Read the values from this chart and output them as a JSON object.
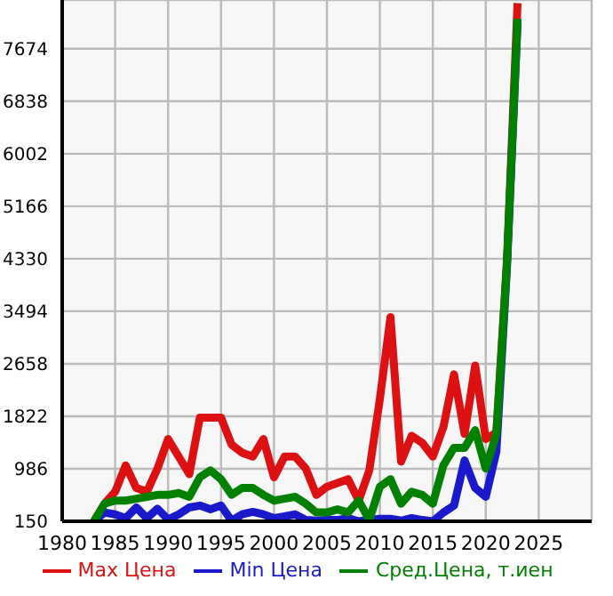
{
  "chart_data": {
    "type": "line",
    "x": [
      1983,
      1984,
      1985,
      1986,
      1987,
      1988,
      1989,
      1990,
      1991,
      1992,
      1993,
      1994,
      1995,
      1996,
      1997,
      1998,
      1999,
      2000,
      2001,
      2002,
      2003,
      2004,
      2005,
      2006,
      2007,
      2008,
      2009,
      2010,
      2011,
      2012,
      2013,
      2014,
      2015,
      2016,
      2017,
      2018,
      2019,
      2020,
      2021,
      2022,
      2023
    ],
    "series": [
      {
        "name": "Max Цена",
        "color": "#dd1111",
        "values": [
          150,
          430,
          620,
          1040,
          680,
          620,
          990,
          1460,
          1180,
          900,
          1800,
          1800,
          1800,
          1370,
          1240,
          1180,
          1460,
          850,
          1180,
          1180,
          990,
          570,
          700,
          760,
          820,
          480,
          960,
          2100,
          3400,
          1100,
          1510,
          1400,
          1180,
          1650,
          2490,
          1540,
          2630,
          1460,
          1560,
          4300,
          8400
        ]
      },
      {
        "name": "Min Цена",
        "color": "#1a1acc",
        "values": [
          150,
          290,
          260,
          200,
          370,
          200,
          350,
          180,
          260,
          370,
          400,
          340,
          400,
          160,
          260,
          300,
          260,
          200,
          230,
          260,
          170,
          160,
          170,
          170,
          200,
          150,
          170,
          190,
          190,
          160,
          200,
          170,
          150,
          290,
          400,
          1120,
          680,
          540,
          1260,
          4200,
          8100
        ]
      },
      {
        "name": "Сред.Цена, т.иен",
        "color": "#008000",
        "values": [
          150,
          430,
          480,
          480,
          510,
          540,
          570,
          570,
          600,
          540,
          850,
          960,
          820,
          570,
          680,
          680,
          570,
          480,
          510,
          540,
          430,
          290,
          290,
          340,
          290,
          480,
          170,
          700,
          820,
          430,
          620,
          570,
          430,
          1040,
          1320,
          1320,
          1600,
          990,
          1540,
          4250,
          8150
        ]
      }
    ],
    "xlim": [
      1980,
      2030
    ],
    "xticks": [
      1980,
      1985,
      1990,
      1995,
      2000,
      2005,
      2010,
      2015,
      2020,
      2025
    ],
    "ylim": [
      150,
      8450
    ],
    "yticks": [
      150,
      986,
      1822,
      2658,
      3494,
      4330,
      5166,
      6002,
      6838,
      7674
    ],
    "grid": true,
    "legend": "bottom",
    "marker": "none",
    "line_style": "solid"
  }
}
